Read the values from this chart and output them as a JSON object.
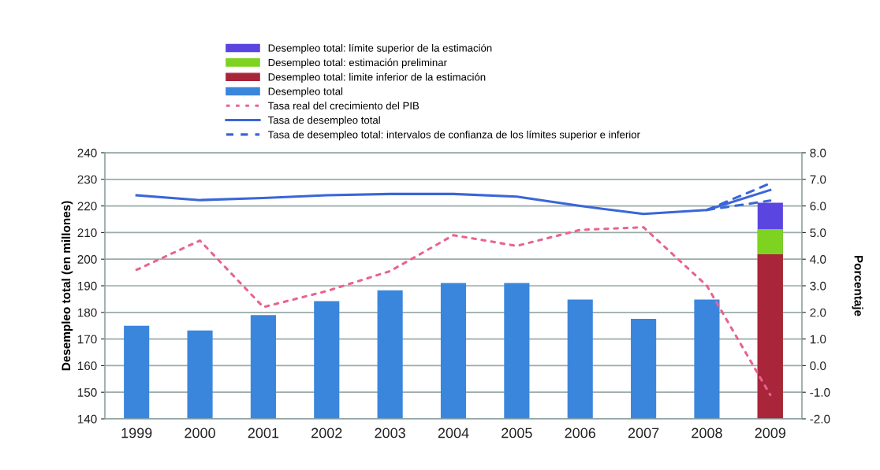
{
  "chart_data": {
    "type": "bar",
    "categories": [
      "1999",
      "2000",
      "2001",
      "2002",
      "2003",
      "2004",
      "2005",
      "2006",
      "2007",
      "2008",
      "2009"
    ],
    "ylabel": "Desempleo total (en millones)",
    "y2label": "Porcentaje",
    "ylim": [
      140,
      240
    ],
    "yticks": [
      140,
      150,
      160,
      170,
      180,
      190,
      200,
      210,
      220,
      230,
      240
    ],
    "y2lim": [
      -2,
      8
    ],
    "y2ticks": [
      {
        "value": -2,
        "label": "-2.0"
      },
      {
        "value": -1,
        "label": "-1.0"
      },
      {
        "value": 0,
        "label": "0.0"
      },
      {
        "value": 1,
        "label": "1.0"
      },
      {
        "value": 2,
        "label": "2.0"
      },
      {
        "value": 3,
        "label": "3.0"
      },
      {
        "value": 4,
        "label": "4.0"
      },
      {
        "value": 5,
        "label": "5.0"
      },
      {
        "value": 6,
        "label": "6.0"
      },
      {
        "value": 7,
        "label": "7.0"
      },
      {
        "value": 8,
        "label": "8.0"
      }
    ],
    "grid": "y",
    "legend": "top",
    "series": [
      {
        "name": "Desempleo total: límite superior de la estimación",
        "color": "#5b45e0",
        "values": [
          null,
          null,
          null,
          null,
          null,
          null,
          null,
          null,
          null,
          null,
          221.2
        ]
      },
      {
        "name": "Desempleo total: estimación preliminar",
        "color": "#7ed321",
        "values": [
          null,
          null,
          null,
          null,
          null,
          null,
          null,
          null,
          null,
          null,
          211.3
        ]
      },
      {
        "name": "Desempleo total: limite inferior de la estimación",
        "color": "#a8253a",
        "values": [
          null,
          null,
          null,
          null,
          null,
          null,
          null,
          null,
          null,
          null,
          201.8
        ]
      },
      {
        "name": "Desempleo total",
        "color": "#3b86dd",
        "values": [
          175,
          173.2,
          179,
          184.2,
          188.3,
          191,
          191,
          184.8,
          177.6,
          184.8,
          null
        ]
      },
      {
        "name": "Tasa real del crecimiento del PIB",
        "type": "line",
        "axis": "y2",
        "line_style": "dotted",
        "color": "#e8648f",
        "values": [
          3.6,
          4.7,
          2.2,
          2.8,
          3.55,
          4.9,
          4.5,
          5.1,
          5.2,
          3.0,
          -1.1
        ]
      },
      {
        "name": "Tasa de desempleo total",
        "type": "line",
        "axis": "y2",
        "line_style": "solid",
        "color": "#3a66d8",
        "values": [
          6.4,
          6.22,
          6.3,
          6.4,
          6.45,
          6.45,
          6.35,
          6.0,
          5.7,
          5.85,
          6.6
        ]
      },
      {
        "name": "Tasa de desempleo total: intervalos de confianza de los límites superior e inferior",
        "type": "line",
        "axis": "y2",
        "line_style": "dashed",
        "color": "#3a66d8",
        "values": [
          null,
          null,
          null,
          null,
          null,
          null,
          null,
          null,
          null,
          5.85,
          6.85
        ]
      },
      {
        "type": "line",
        "axis": "y2",
        "line_style": "dashed",
        "color": "#3a66d8",
        "values": [
          null,
          null,
          null,
          null,
          null,
          null,
          null,
          null,
          null,
          5.85,
          6.2
        ]
      }
    ]
  }
}
